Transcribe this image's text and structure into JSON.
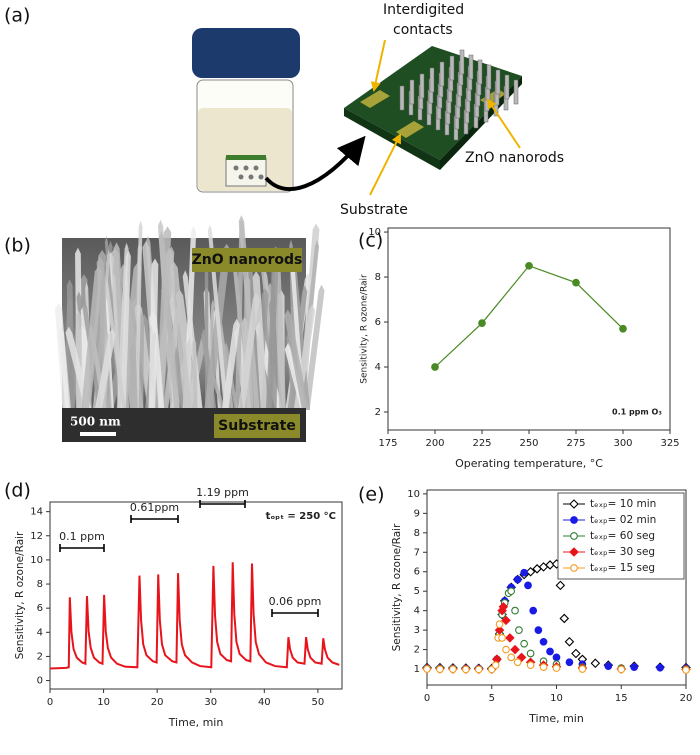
{
  "panels": [
    "(a)",
    "(b)",
    "(c)",
    "(d)",
    "(e)"
  ],
  "diagram": {
    "labels": [
      "Interdigited",
      "contacts",
      "ZnO nanorods",
      "Substrate"
    ]
  },
  "image": {
    "labels": [
      "ZnO nanorods",
      "Substrate",
      "500 nm"
    ]
  },
  "chart_data": [
    {
      "type": "line",
      "markers": true,
      "color": "#4a8a24",
      "x": [
        200,
        225,
        250,
        275,
        300
      ],
      "values": [
        4.0,
        5.95,
        8.5,
        7.75,
        5.7
      ],
      "xlim": [
        175,
        325
      ],
      "xticks": [
        175,
        200,
        225,
        250,
        275,
        300,
        325
      ],
      "ylim": [
        1.2,
        10.18
      ],
      "yticks": [
        2,
        4,
        6,
        8,
        10
      ],
      "x_label": "Operating temperature, °C",
      "y_label": "Sensitivity, R ozone/Rair",
      "annotations": [
        "0.1 ppm O₃"
      ]
    },
    {
      "type": "line",
      "markers": false,
      "color": "#e8141b",
      "x": [
        0,
        3.0,
        3.5,
        3.7,
        4.0,
        4.4,
        5.0,
        6.0,
        6.6,
        6.9,
        7.2,
        7.6,
        8.2,
        9.2,
        9.8,
        10.1,
        10.4,
        10.8,
        11.4,
        12.5,
        14,
        16.3,
        16.7,
        17.0,
        17.4,
        18.0,
        19.2,
        19.9,
        20.2,
        20.5,
        20.9,
        21.5,
        22.8,
        23.6,
        23.9,
        24.2,
        24.6,
        25.2,
        26.5,
        28,
        30.1,
        30.5,
        30.8,
        31.2,
        31.8,
        33.0,
        33.8,
        34.1,
        34.4,
        34.8,
        35.4,
        36.6,
        37.4,
        37.7,
        38.0,
        38.4,
        39.0,
        40.3,
        42,
        44.2,
        44.5,
        44.8,
        45.3,
        46.2,
        47.5,
        47.8,
        48.1,
        48.6,
        49.5,
        50.7,
        51.0,
        51.3,
        51.8,
        52.7,
        54
      ],
      "values": [
        1.0,
        1.05,
        1.1,
        6.9,
        4.0,
        2.6,
        1.9,
        1.5,
        1.4,
        7.0,
        4.1,
        2.7,
        1.9,
        1.5,
        1.4,
        7.1,
        4.1,
        2.7,
        1.9,
        1.4,
        1.15,
        1.1,
        8.7,
        5.0,
        3.0,
        2.1,
        1.6,
        1.5,
        8.8,
        5.0,
        3.0,
        2.1,
        1.6,
        1.5,
        8.9,
        5.0,
        3.0,
        2.1,
        1.5,
        1.2,
        1.1,
        9.5,
        5.4,
        3.2,
        2.2,
        1.7,
        1.6,
        9.8,
        5.5,
        3.2,
        2.2,
        1.7,
        1.6,
        9.7,
        5.5,
        3.2,
        2.2,
        1.5,
        1.2,
        1.1,
        3.6,
        2.6,
        1.9,
        1.5,
        1.4,
        3.6,
        2.6,
        1.9,
        1.5,
        1.4,
        3.5,
        2.6,
        1.9,
        1.5,
        1.3
      ],
      "xlim": [
        0,
        54.5
      ],
      "xticks": [
        0,
        10,
        20,
        30,
        40,
        50
      ],
      "ylim": [
        -0.7,
        14.8
      ],
      "yticks": [
        0,
        2,
        4,
        6,
        8,
        10,
        12,
        14
      ],
      "x_label": "Time, min",
      "y_label": "Sensitivity, R ozone/Rair",
      "annotations": [
        "0.1 ppm",
        "0.61ppm",
        "1.19 ppm",
        "0.06 ppm",
        "tₒₚₜ = 250 °C"
      ]
    },
    {
      "type": "scatter",
      "legend": "upper right",
      "xlim": [
        0,
        20
      ],
      "xticks": [
        0,
        5,
        10,
        15,
        20
      ],
      "ylim": [
        0.18,
        10.2
      ],
      "yticks": [
        1,
        2,
        3,
        4,
        5,
        6,
        7,
        8,
        9,
        10
      ],
      "x_label": "Time, min",
      "y_label": "Sensitivity, R ozone/Rair",
      "series": [
        {
          "name": "tₑₓₚ= 10 min",
          "color": "#000000",
          "marker": "diamond",
          "filled": false,
          "x": [
            0,
            1,
            2,
            3,
            4,
            5,
            5.4,
            5.6,
            5.8,
            6.0,
            6.5,
            7,
            7.5,
            8,
            8.5,
            9,
            9.5,
            10,
            10.3,
            10.6,
            11,
            11.5,
            12,
            13,
            14,
            16,
            18,
            20
          ],
          "values": [
            1.08,
            1.07,
            1.06,
            1.05,
            1.04,
            1.03,
            1.5,
            2.8,
            3.8,
            4.5,
            5.2,
            5.6,
            5.85,
            6.0,
            6.15,
            6.25,
            6.35,
            6.4,
            5.3,
            3.6,
            2.4,
            1.8,
            1.5,
            1.3,
            1.2,
            1.15,
            1.1,
            1.08
          ]
        },
        {
          "name": "tₑₓₚ= 02 min",
          "color": "#1a1ae6",
          "marker": "circle",
          "filled": true,
          "x": [
            0,
            1,
            2,
            3,
            4,
            5,
            5.4,
            5.6,
            5.8,
            6.0,
            6.5,
            7,
            7.5,
            7.8,
            8.2,
            8.6,
            9,
            9.5,
            10,
            11,
            12,
            14,
            16,
            18,
            20
          ],
          "values": [
            1.06,
            1.05,
            1.04,
            1.03,
            1.02,
            1.01,
            1.5,
            2.8,
            3.8,
            4.5,
            5.2,
            5.6,
            5.95,
            5.3,
            4.0,
            3.0,
            2.4,
            1.9,
            1.6,
            1.35,
            1.25,
            1.15,
            1.1,
            1.07,
            1.05
          ]
        },
        {
          "name": "tₑₓₚ= 60 seg",
          "color": "#2f7d32",
          "marker": "circle",
          "filled": false,
          "x": [
            0,
            1,
            2,
            3,
            4,
            5,
            5.4,
            5.6,
            5.8,
            6.0,
            6.3,
            6.5,
            6.8,
            7.1,
            7.5,
            8,
            9,
            10,
            12,
            15,
            20
          ],
          "values": [
            1.04,
            1.03,
            1.02,
            1.01,
            1.0,
            1.0,
            1.5,
            2.8,
            3.8,
            4.4,
            4.9,
            5.0,
            4.0,
            3.0,
            2.3,
            1.8,
            1.4,
            1.25,
            1.1,
            1.05,
            1.0
          ]
        },
        {
          "name": "tₑₓₚ= 30 seg",
          "color": "#e8141b",
          "marker": "diamond",
          "filled": true,
          "x": [
            0,
            1,
            2,
            3,
            4,
            5,
            5.4,
            5.6,
            5.8,
            5.9,
            6.1,
            6.4,
            6.8,
            7.3,
            8,
            9,
            10,
            12,
            15,
            20
          ],
          "values": [
            1.02,
            1.01,
            1.0,
            1.0,
            0.99,
            0.99,
            1.5,
            3.0,
            4.0,
            4.2,
            3.5,
            2.6,
            2.0,
            1.6,
            1.35,
            1.2,
            1.12,
            1.05,
            1.0,
            0.98
          ]
        },
        {
          "name": "tₑₓₚ= 15 seg",
          "color": "#f39c1f",
          "marker": "circle",
          "filled": false,
          "x": [
            0,
            1,
            2,
            3,
            4,
            5,
            5.3,
            5.5,
            5.6,
            5.8,
            6.1,
            6.5,
            7,
            8,
            9,
            10,
            12,
            15,
            20
          ],
          "values": [
            1.0,
            0.99,
            0.99,
            0.98,
            0.98,
            0.98,
            1.2,
            2.6,
            3.3,
            2.6,
            2.0,
            1.6,
            1.35,
            1.2,
            1.1,
            1.05,
            1.0,
            0.98,
            0.95
          ]
        }
      ]
    }
  ]
}
